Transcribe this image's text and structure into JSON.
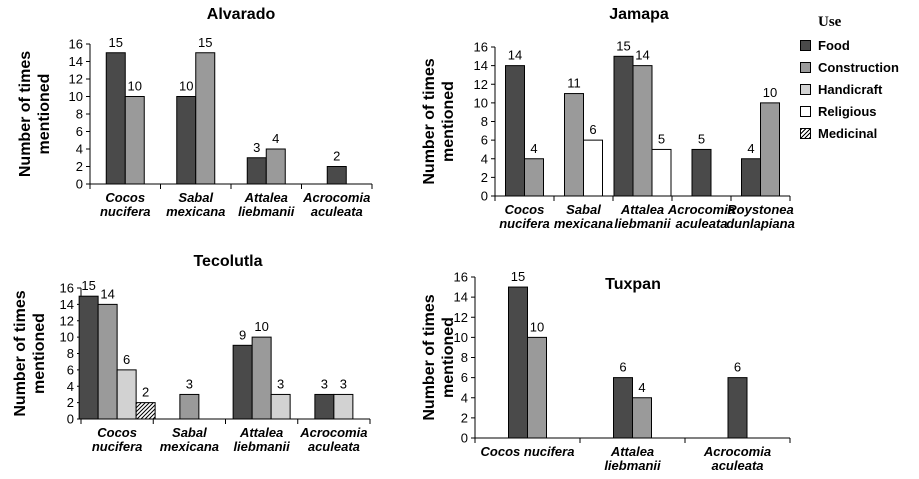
{
  "legend": {
    "title": "Use",
    "items": [
      {
        "name": "Food",
        "color": "#4a4a4a",
        "pattern": "solid"
      },
      {
        "name": "Construction",
        "color": "#9a9a9a",
        "pattern": "solid"
      },
      {
        "name": "Handicraft",
        "color": "#d2d2d2",
        "pattern": "solid"
      },
      {
        "name": "Religious",
        "color": "#ffffff",
        "pattern": "solid"
      },
      {
        "name": "Medicinal",
        "color": "#ffffff",
        "pattern": "diagonal-hatch"
      }
    ]
  },
  "chart_data": [
    {
      "type": "bar",
      "title": "Alvarado",
      "ylabel": "Number of times mentioned",
      "xlabel": "",
      "ylim": [
        0,
        16
      ],
      "yticks": [
        0,
        2,
        4,
        6,
        8,
        10,
        12,
        14,
        16
      ],
      "categories": [
        [
          "Cocos",
          "nucifera"
        ],
        [
          "Sabal",
          "mexicana"
        ],
        [
          "Attalea",
          "liebmanii"
        ],
        [
          "Acrocomia",
          "aculeata"
        ]
      ],
      "series": [
        {
          "name": "Food",
          "values": [
            15,
            10,
            3,
            2
          ]
        },
        {
          "name": "Construction",
          "values": [
            10,
            15,
            4,
            null
          ]
        }
      ]
    },
    {
      "type": "bar",
      "title": "Jamapa",
      "ylabel": "Number of times mentioned",
      "xlabel": "",
      "ylim": [
        0,
        16
      ],
      "yticks": [
        0,
        2,
        4,
        6,
        8,
        10,
        12,
        14,
        16
      ],
      "categories": [
        [
          "Cocos",
          "nucifera"
        ],
        [
          "Sabal",
          "mexicana"
        ],
        [
          "Attalea",
          "liebmanii"
        ],
        [
          "Acrocomia",
          "aculeata"
        ],
        [
          "Roystonea",
          "dunlapiana"
        ]
      ],
      "series": [
        {
          "name": "Food",
          "values": [
            14,
            null,
            15,
            5,
            4
          ]
        },
        {
          "name": "Construction",
          "values": [
            4,
            11,
            14,
            null,
            10
          ]
        },
        {
          "name": "Religious",
          "values": [
            null,
            6,
            5,
            null,
            null
          ]
        }
      ]
    },
    {
      "type": "bar",
      "title": "Tecolutla",
      "ylabel": "Number of times mentioned",
      "xlabel": "",
      "ylim": [
        0,
        16
      ],
      "yticks": [
        0,
        2,
        4,
        6,
        8,
        10,
        12,
        14,
        16
      ],
      "categories": [
        [
          "Cocos",
          "nucifera"
        ],
        [
          "Sabal",
          "mexicana"
        ],
        [
          "Attalea",
          "liebmanii"
        ],
        [
          "Acrocomia",
          "aculeata"
        ]
      ],
      "series": [
        {
          "name": "Food",
          "values": [
            15,
            null,
            9,
            3
          ]
        },
        {
          "name": "Construction",
          "values": [
            14,
            3,
            10,
            null
          ]
        },
        {
          "name": "Handicraft",
          "values": [
            6,
            null,
            3,
            3
          ]
        },
        {
          "name": "Medicinal",
          "values": [
            2,
            null,
            null,
            null
          ]
        }
      ]
    },
    {
      "type": "bar",
      "title": "Tuxpan",
      "ylabel": "Number of times mentioned",
      "xlabel": "",
      "ylim": [
        0,
        16
      ],
      "yticks": [
        0,
        2,
        4,
        6,
        8,
        10,
        12,
        14,
        16
      ],
      "categories": [
        [
          "Cocos nucifera"
        ],
        [
          "Attalea",
          "liebmanii"
        ],
        [
          "Acrocomia",
          "aculeata"
        ]
      ],
      "series": [
        {
          "name": "Food",
          "values": [
            15,
            6,
            6
          ]
        },
        {
          "name": "Construction",
          "values": [
            10,
            4,
            null
          ]
        }
      ]
    }
  ]
}
